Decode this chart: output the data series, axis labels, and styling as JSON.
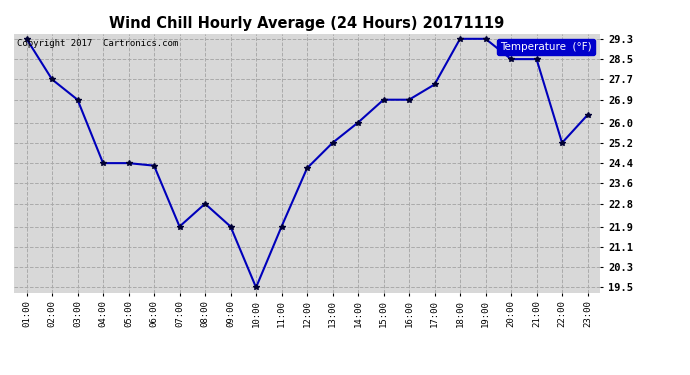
{
  "title": "Wind Chill Hourly Average (24 Hours) 20171119",
  "hours": [
    "01:00",
    "02:00",
    "03:00",
    "04:00",
    "05:00",
    "06:00",
    "07:00",
    "08:00",
    "09:00",
    "10:00",
    "11:00",
    "12:00",
    "13:00",
    "14:00",
    "15:00",
    "16:00",
    "17:00",
    "18:00",
    "19:00",
    "20:00",
    "21:00",
    "22:00",
    "23:00"
  ],
  "values": [
    29.3,
    27.7,
    26.9,
    24.4,
    24.4,
    24.3,
    21.9,
    22.8,
    21.9,
    19.5,
    21.9,
    24.2,
    25.2,
    26.0,
    26.9,
    26.9,
    27.5,
    29.3,
    29.3,
    28.5,
    28.5,
    25.2,
    26.3
  ],
  "line_color": "#0000bb",
  "marker_color": "#000033",
  "bg_color": "#ffffff",
  "plot_bg_color": "#d8d8d8",
  "grid_color": "#aaaaaa",
  "legend_label": "Temperature  (°F)",
  "legend_bg": "#0000cc",
  "legend_text_color": "#ffffff",
  "copyright_text": "Copyright 2017  Cartronics.com",
  "yticks": [
    19.5,
    20.3,
    21.1,
    21.9,
    22.8,
    23.6,
    24.4,
    25.2,
    26.0,
    26.9,
    27.7,
    28.5,
    29.3
  ],
  "ymin": 19.3,
  "ymax": 29.5
}
